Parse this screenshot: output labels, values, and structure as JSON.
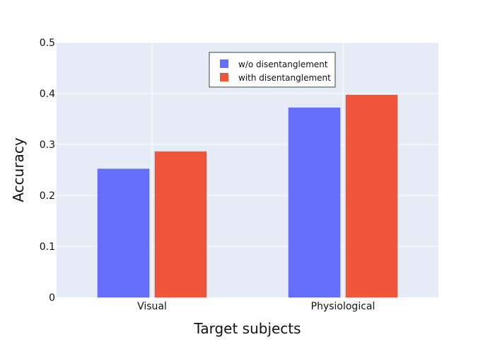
{
  "chart_data": {
    "type": "bar",
    "categories": [
      "Visual",
      "Physiological"
    ],
    "series": [
      {
        "name": "w/o disentanglement",
        "values": [
          0.252,
          0.372
        ],
        "color": "#636efa"
      },
      {
        "name": "with disentanglement",
        "values": [
          0.286,
          0.397
        ],
        "color": "#ef553b"
      }
    ],
    "xlabel": "Target subjects",
    "ylabel": "Accuracy",
    "ylim": [
      0,
      0.5
    ],
    "yticks": [
      0,
      0.1,
      0.2,
      0.3,
      0.4,
      0.5
    ],
    "ytick_labels": [
      "0",
      "0.1",
      "0.2",
      "0.3",
      "0.4",
      "0.5"
    ],
    "grid": true,
    "legend_position": "top-right",
    "plot_background": "#e5ecf6",
    "grid_color": "#ffffff"
  }
}
